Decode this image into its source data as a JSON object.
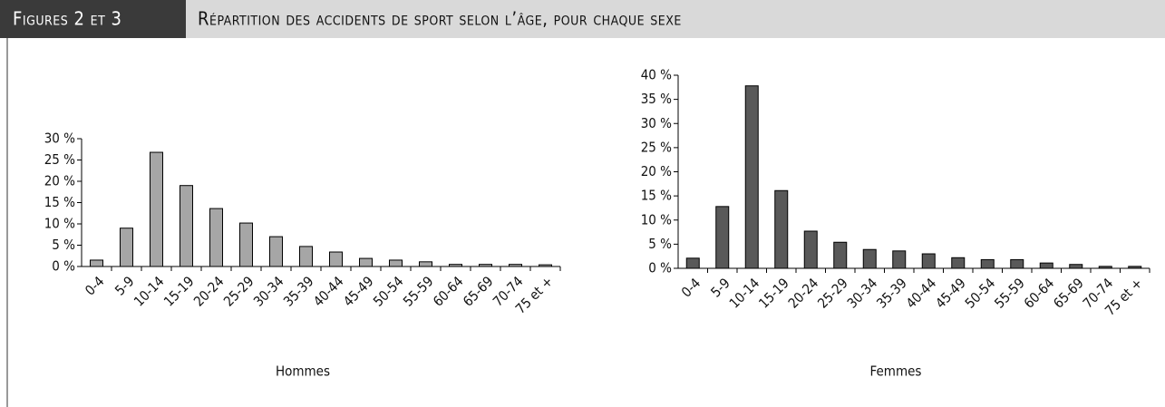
{
  "header": {
    "label": "Figures 2 et 3",
    "title": "Répartition des accidents de sport selon l’âge, pour chaque sexe"
  },
  "chart_data": [
    {
      "type": "bar",
      "xlabel": "Hommes",
      "categories": [
        "0-4",
        "5-9",
        "10-14",
        "15-19",
        "20-24",
        "25-29",
        "30-34",
        "35-39",
        "40-44",
        "45-49",
        "50-54",
        "55-59",
        "60-64",
        "65-69",
        "70-74",
        "75 et +"
      ],
      "values": [
        1.5,
        9,
        26.8,
        19,
        13.6,
        10.2,
        7,
        4.7,
        3.4,
        1.9,
        1.5,
        1.1,
        0.5,
        0.5,
        0.5,
        0.4
      ],
      "color": "#a6a6a6",
      "ylim": [
        0,
        30
      ],
      "yticks": [
        {
          "value": 0,
          "label": "0 %"
        },
        {
          "value": 5,
          "label": "5 %"
        },
        {
          "value": 10,
          "label": "10 %"
        },
        {
          "value": 15,
          "label": "15 %"
        },
        {
          "value": 20,
          "label": "20 %"
        },
        {
          "value": 25,
          "label": "25 %"
        },
        {
          "value": 30,
          "label": "30 %"
        }
      ]
    },
    {
      "type": "bar",
      "xlabel": "Femmes",
      "categories": [
        "0-4",
        "5-9",
        "10-14",
        "15-19",
        "20-24",
        "25-29",
        "30-34",
        "35-39",
        "40-44",
        "45-49",
        "50-54",
        "55-59",
        "60-64",
        "65-69",
        "70-74",
        "75 et +"
      ],
      "values": [
        2.1,
        12.8,
        37.8,
        16.1,
        7.7,
        5.4,
        3.9,
        3.6,
        3,
        2.2,
        1.8,
        1.8,
        1.1,
        0.8,
        0.4,
        0.4
      ],
      "color": "#595959",
      "ylim": [
        0,
        40
      ],
      "yticks": [
        {
          "value": 0,
          "label": "0 %"
        },
        {
          "value": 5,
          "label": "5 %"
        },
        {
          "value": 10,
          "label": "10 %"
        },
        {
          "value": 15,
          "label": "15 %"
        },
        {
          "value": 20,
          "label": "20 %"
        },
        {
          "value": 25,
          "label": "25 %"
        },
        {
          "value": 30,
          "label": "30 %"
        },
        {
          "value": 35,
          "label": "35 %"
        },
        {
          "value": 40,
          "label": "40 %"
        }
      ]
    }
  ]
}
